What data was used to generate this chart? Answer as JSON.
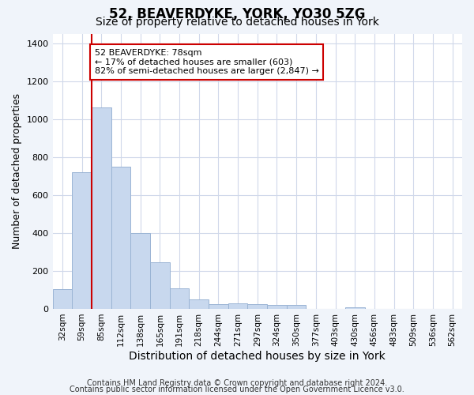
{
  "title1": "52, BEAVERDYKE, YORK, YO30 5ZG",
  "title2": "Size of property relative to detached houses in York",
  "xlabel": "Distribution of detached houses by size in York",
  "ylabel": "Number of detached properties",
  "categories": [
    "32sqm",
    "59sqm",
    "85sqm",
    "112sqm",
    "138sqm",
    "165sqm",
    "191sqm",
    "218sqm",
    "244sqm",
    "271sqm",
    "297sqm",
    "324sqm",
    "350sqm",
    "377sqm",
    "403sqm",
    "430sqm",
    "456sqm",
    "483sqm",
    "509sqm",
    "536sqm",
    "562sqm"
  ],
  "values": [
    105,
    720,
    1060,
    750,
    400,
    245,
    110,
    50,
    25,
    30,
    25,
    20,
    20,
    0,
    0,
    10,
    0,
    0,
    0,
    0,
    0
  ],
  "bar_color": "#c8d8ee",
  "bar_edgecolor": "#9ab4d4",
  "marker_color": "#cc0000",
  "annotation_text": "52 BEAVERDYKE: 78sqm\n← 17% of detached houses are smaller (603)\n82% of semi-detached houses are larger (2,847) →",
  "annotation_box_color": "#ffffff",
  "annotation_box_edgecolor": "#cc0000",
  "ylim": [
    0,
    1450
  ],
  "yticks": [
    0,
    200,
    400,
    600,
    800,
    1000,
    1200,
    1400
  ],
  "footer_line1": "Contains HM Land Registry data © Crown copyright and database right 2024.",
  "footer_line2": "Contains public sector information licensed under the Open Government Licence v3.0.",
  "bg_color": "#f0f4fa",
  "plot_bg_color": "#ffffff",
  "grid_color": "#d0d8ea",
  "title1_fontsize": 12,
  "title2_fontsize": 10,
  "xlabel_fontsize": 10,
  "ylabel_fontsize": 9,
  "footer_fontsize": 7
}
